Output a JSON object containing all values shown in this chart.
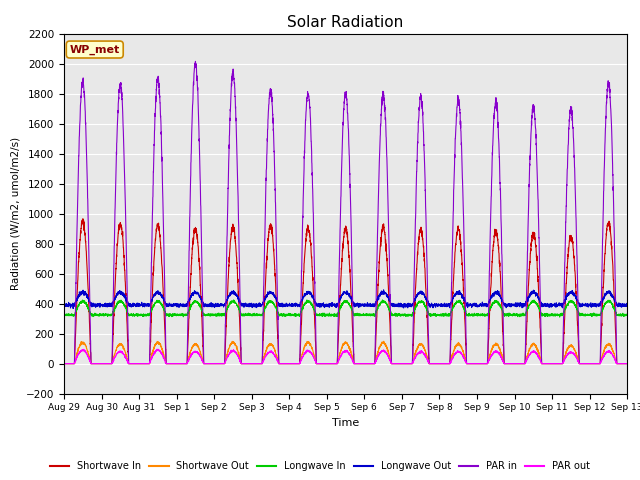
{
  "title": "Solar Radiation",
  "ylabel": "Radiation (W/m2, umol/m2/s)",
  "xlabel": "Time",
  "ylim": [
    -200,
    2200
  ],
  "yticks": [
    -200,
    0,
    200,
    400,
    600,
    800,
    1000,
    1200,
    1400,
    1600,
    1800,
    2000,
    2200
  ],
  "fig_bg_color": "#ffffff",
  "plot_bg_color": "#e8e8e8",
  "annotation_text": "WP_met",
  "annotation_bg": "#ffffcc",
  "annotation_border": "#cc8800",
  "annotation_text_color": "#880000",
  "series_colors": {
    "shortwave_in": "#cc0000",
    "shortwave_out": "#ff8800",
    "longwave_in": "#00cc00",
    "longwave_out": "#0000cc",
    "par_in": "#8800cc",
    "par_out": "#ff00ff"
  },
  "num_days": 15,
  "tick_labels": [
    "Aug 29",
    "Aug 30",
    "Aug 31",
    "Sep 1",
    "Sep 2",
    "Sep 3",
    "Sep 4",
    "Sep 5",
    "Sep 6",
    "Sep 7",
    "Sep 8",
    "Sep 9",
    "Sep 10",
    "Sep 11",
    "Sep 12",
    "Sep 13"
  ],
  "shortwave_in_peaks": [
    950,
    930,
    920,
    900,
    910,
    920,
    900,
    900,
    910,
    890,
    900,
    880,
    870,
    845,
    940
  ],
  "shortwave_out_peaks": [
    140,
    130,
    140,
    130,
    140,
    130,
    140,
    140,
    140,
    130,
    130,
    130,
    130,
    120,
    130
  ],
  "longwave_in_baseline": 325,
  "longwave_in_day_peak": 415,
  "longwave_out_baseline": 390,
  "longwave_out_day_peak": 475,
  "par_in_peaks": [
    1880,
    1860,
    1900,
    2000,
    1930,
    1820,
    1800,
    1800,
    1790,
    1770,
    1760,
    1750,
    1710,
    1690,
    1870
  ],
  "par_out_peaks": [
    90,
    80,
    90,
    80,
    85,
    80,
    85,
    85,
    85,
    80,
    80,
    80,
    80,
    75,
    80
  ],
  "points_per_day": 288,
  "legend_labels": [
    "Shortwave In",
    "Shortwave Out",
    "Longwave In",
    "Longwave Out",
    "PAR in",
    "PAR out"
  ]
}
